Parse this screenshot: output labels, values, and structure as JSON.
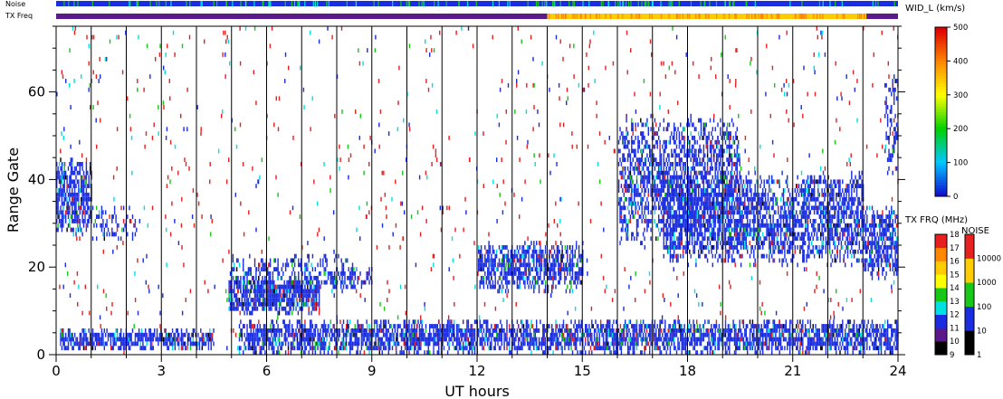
{
  "chart_data": {
    "type": "heatmap",
    "xlabel": "UT hours",
    "ylabel": "Range Gate",
    "xlim": [
      0,
      24
    ],
    "ylim": [
      0,
      75
    ],
    "xticks": [
      0,
      3,
      6,
      9,
      12,
      15,
      18,
      21,
      24
    ],
    "yticks": [
      0,
      20,
      40,
      60
    ],
    "vertical_lines_hours": [
      1,
      2,
      3,
      4,
      5,
      6,
      7,
      8,
      9,
      10,
      11,
      12,
      13,
      14,
      15,
      16,
      17,
      18,
      19,
      20,
      21,
      22,
      23
    ],
    "noise_bar_label": "Noise",
    "txfreq_bar_label": "TX Freq",
    "txfreq_segments": [
      {
        "start": 0,
        "end": 14,
        "color": "#5a1a8a"
      },
      {
        "start": 14,
        "end": 23.1,
        "color": "#ffcc00"
      },
      {
        "start": 23.1,
        "end": 24,
        "color": "#5a1a8a"
      }
    ],
    "width_colorbar": {
      "title": "WID_L (km/s)",
      "ticks": [
        0,
        100,
        200,
        300,
        400,
        500
      ],
      "range": [
        0,
        500
      ]
    },
    "freq_colorbar": {
      "title": "TX FRQ (MHz)",
      "ticks": [
        9,
        10,
        11,
        12,
        13,
        14,
        15,
        16,
        17,
        18
      ],
      "colors": [
        "#000000",
        "#5a1a8a",
        "#1a2de0",
        "#00e0e0",
        "#18c818",
        "#ffff00",
        "#ffcc00",
        "#ff8800",
        "#e82020"
      ]
    },
    "noise_colorbar": {
      "title": "NOISE",
      "ticks": [
        "1",
        "10",
        "100",
        "1000",
        "10000"
      ],
      "colors": [
        "#000000",
        "#1a2de0",
        "#18c818",
        "#ffcc00",
        "#e82020"
      ]
    },
    "echo_regions": [
      {
        "t0": 0.0,
        "t1": 1.0,
        "g0": 27,
        "g1": 45,
        "density": 0.75
      },
      {
        "t0": 1.0,
        "t1": 2.3,
        "g0": 26,
        "g1": 34,
        "density": 0.3
      },
      {
        "t0": 0.1,
        "t1": 4.5,
        "g0": 1,
        "g1": 6,
        "density": 0.8
      },
      {
        "t0": 4.9,
        "t1": 7.5,
        "g0": 9,
        "g1": 18,
        "density": 0.85
      },
      {
        "t0": 4.9,
        "t1": 8.5,
        "g0": 14,
        "g1": 23,
        "density": 0.3
      },
      {
        "t0": 7.8,
        "t1": 9.0,
        "g0": 15,
        "g1": 20,
        "density": 0.5
      },
      {
        "t0": 5.2,
        "t1": 24.0,
        "g0": 0,
        "g1": 8,
        "density": 0.75
      },
      {
        "t0": 12.0,
        "t1": 15.0,
        "g0": 14,
        "g1": 26,
        "density": 0.7
      },
      {
        "t0": 16.0,
        "t1": 19.5,
        "g0": 25,
        "g1": 55,
        "density": 0.55
      },
      {
        "t0": 17.3,
        "t1": 23.0,
        "g0": 20,
        "g1": 42,
        "density": 0.65
      },
      {
        "t0": 23.0,
        "t1": 24.0,
        "g0": 17,
        "g1": 34,
        "density": 0.75
      },
      {
        "t0": 23.6,
        "t1": 24.0,
        "g0": 40,
        "g1": 65,
        "density": 0.4
      }
    ],
    "scatter_density": 0.02
  }
}
